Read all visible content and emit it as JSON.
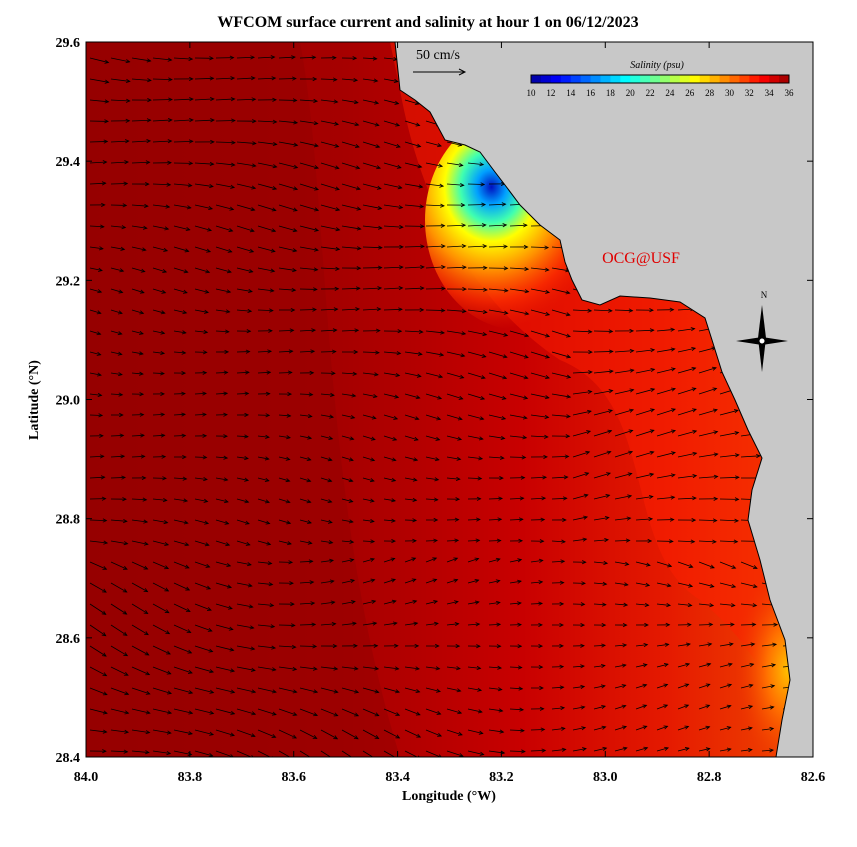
{
  "title": "WFCOM surface current and salinity at hour 1 on 06/12/2023",
  "map": {
    "x_label": "Longitude (°W)",
    "y_label": "Latitude (°N)",
    "xlim": [
      84.0,
      82.6
    ],
    "ylim": [
      28.4,
      29.6
    ],
    "xticks": [
      {
        "value": 84.0,
        "label": "84.0"
      },
      83.8,
      83.6,
      83.4,
      83.2,
      {
        "value": 83.0,
        "label": "83.0"
      },
      82.8,
      82.6
    ],
    "yticks": [
      28.4,
      28.6,
      28.8,
      {
        "value": 29.0,
        "label": "29.0"
      },
      29.2,
      29.4,
      29.6
    ]
  },
  "legend": {
    "title": "Salinity (psu)",
    "range": [
      10,
      36
    ],
    "ticks": [
      10,
      12,
      14,
      16,
      18,
      20,
      22,
      24,
      26,
      28,
      30,
      32,
      34,
      36
    ]
  },
  "scale_label": "50 cm/s",
  "watermark": "OCG@USF",
  "compass": "N"
}
